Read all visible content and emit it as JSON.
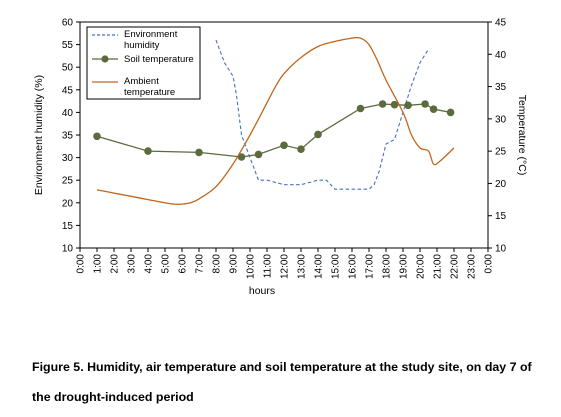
{
  "caption": "Figure 5. Humidity, air temperature and soil temperature at the study site, on day 7 of the drought-induced period",
  "chart_data": {
    "type": "line",
    "xlabel": "hours",
    "ylabel_left": "Environment humidity (%)",
    "ylabel_right": "Temperature (°C)",
    "x_ticks": [
      "0:00",
      "1:00",
      "2:00",
      "3:00",
      "4:00",
      "5:00",
      "6:00",
      "7:00",
      "8:00",
      "9:00",
      "10:00",
      "11:00",
      "12:00",
      "13:00",
      "14:00",
      "15:00",
      "16:00",
      "17:00",
      "18:00",
      "19:00",
      "20:00",
      "21:00",
      "22:00",
      "23:00",
      "0:00"
    ],
    "xlim": [
      0,
      24
    ],
    "ylim_left": [
      10,
      60
    ],
    "yticks_left": [
      "10",
      "15",
      "20",
      "25",
      "30",
      "35",
      "40",
      "45",
      "50",
      "55",
      "60"
    ],
    "ylim_right": [
      10,
      45
    ],
    "yticks_right": [
      "10",
      "15",
      "20",
      "25",
      "30",
      "35",
      "40",
      "45"
    ],
    "grid": false,
    "legend_position": "top-left",
    "series": [
      {
        "name": "Environment humidity",
        "axis": "left",
        "style": "dashed",
        "color": "#4472c4",
        "x": [
          8.0,
          8.5,
          9.0,
          9.2,
          9.5,
          10.0,
          10.5,
          11.0,
          12.0,
          13.0,
          14.0,
          14.5,
          15.0,
          16.0,
          17.0,
          17.3,
          17.6,
          18.0,
          18.5,
          19.0,
          19.5,
          20.0,
          20.5
        ],
        "values": [
          56,
          51,
          48,
          44,
          35,
          30,
          25,
          25,
          24,
          24,
          25,
          25,
          23,
          23,
          23,
          24,
          27,
          33,
          34,
          40,
          46,
          51,
          54
        ]
      },
      {
        "name": "Soil temperature",
        "axis": "right",
        "style": "markers",
        "color": "#5c6b3d",
        "x": [
          1.0,
          4.0,
          7.0,
          9.5,
          10.5,
          12.0,
          13.0,
          14.0,
          16.5,
          17.8,
          18.5,
          19.3,
          20.3,
          20.8,
          21.8
        ],
        "values": [
          27.3,
          25.0,
          24.8,
          24.1,
          24.5,
          25.9,
          25.3,
          27.6,
          31.6,
          32.3,
          32.2,
          32.1,
          32.3,
          31.5,
          31.0
        ]
      },
      {
        "name": "Ambient temperature",
        "axis": "right",
        "style": "solid",
        "color": "#c0661e",
        "x": [
          1.0,
          2.0,
          3.0,
          4.0,
          5.0,
          5.5,
          6.0,
          6.5,
          7.0,
          8.0,
          9.0,
          10.0,
          11.0,
          11.5,
          12.0,
          13.0,
          14.0,
          15.0,
          16.0,
          16.5,
          17.0,
          17.5,
          18.0,
          19.0,
          19.5,
          20.0,
          20.5,
          20.8,
          21.2,
          22.0
        ],
        "values": [
          19.0,
          18.5,
          18.0,
          17.5,
          17.0,
          16.8,
          16.8,
          17.0,
          17.6,
          19.5,
          23.0,
          27.5,
          32.5,
          35.0,
          37.0,
          39.5,
          41.2,
          42.0,
          42.5,
          42.5,
          41.5,
          39.0,
          36.0,
          31.0,
          27.5,
          25.5,
          25.0,
          23.0,
          23.5,
          25.5
        ]
      }
    ]
  }
}
